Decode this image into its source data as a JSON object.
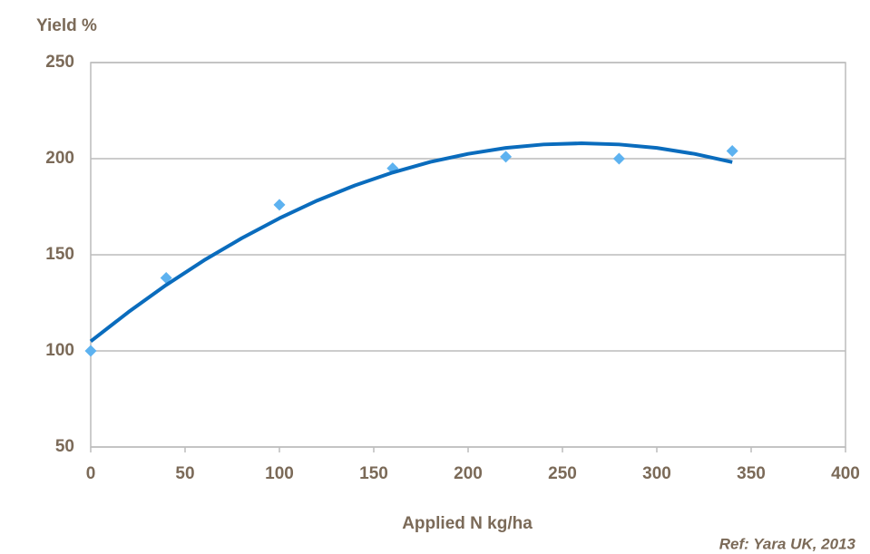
{
  "chart_data": {
    "type": "scatter",
    "y_label": "Yield %",
    "x_label": "Applied N kg/ha",
    "annotation": "Ref: Yara UK, 2013",
    "xlim": [
      0,
      400
    ],
    "xticks": [
      0,
      50,
      100,
      150,
      200,
      250,
      300,
      350,
      400
    ],
    "ylim": [
      50,
      250
    ],
    "yticks": [
      50,
      100,
      150,
      200,
      250
    ],
    "grid": true,
    "series": [
      {
        "color": "#5db2f0",
        "marker": "diamond",
        "x": [
          0,
          40,
          100,
          160,
          220,
          280,
          340
        ],
        "values": [
          100,
          138,
          176,
          195,
          201,
          200,
          204
        ]
      },
      {
        "color": "#0a6cbd",
        "marker": "line",
        "x": [
          0,
          20,
          40,
          60,
          80,
          100,
          120,
          140,
          160,
          180,
          200,
          220,
          240,
          260,
          280,
          300,
          320,
          340
        ],
        "values": [
          105,
          120.2,
          134.3,
          147.1,
          158.6,
          169,
          178.2,
          186.1,
          192.8,
          198.3,
          202.5,
          205.6,
          207.4,
          208,
          207.4,
          205.6,
          202.5,
          198.2
        ]
      }
    ]
  }
}
